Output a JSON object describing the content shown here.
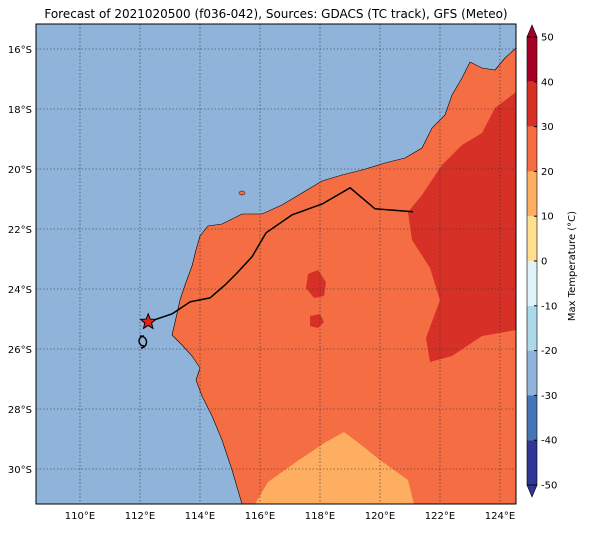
{
  "title": "Forecast of 2021020500 (f036-042), Sources: GDACS (TC track), GFS (Meteo)",
  "map": {
    "lon_labels": [
      "110°E",
      "112°E",
      "114°E",
      "116°E",
      "118°E",
      "120°E",
      "122°E",
      "124°E"
    ],
    "lat_labels": [
      "16°S",
      "18°S",
      "20°S",
      "22°S",
      "24°S",
      "26°S",
      "28°S",
      "30°S"
    ],
    "xlim": [
      108.53,
      124.53
    ],
    "ylim": [
      -31.17,
      -15.17
    ]
  },
  "track": {
    "lon": [
      112.27,
      113.07,
      113.67,
      114.33,
      114.83,
      115.23,
      115.73,
      116.2,
      117.07,
      118.07,
      119.0,
      119.83,
      121.1
    ],
    "lat": [
      -25.1,
      -24.83,
      -24.43,
      -24.3,
      -23.87,
      -23.47,
      -22.93,
      -22.13,
      -21.53,
      -21.17,
      -20.63,
      -21.33,
      -21.43
    ],
    "color": "#000000",
    "star_color": "#e8211f"
  },
  "colorbar": {
    "label": "Max Temperature (°C)",
    "ticks": [
      50,
      40,
      30,
      20,
      10,
      0,
      -10,
      -20,
      -30,
      -40,
      -50
    ],
    "colors": [
      "#a50026",
      "#d73027",
      "#f46d43",
      "#fdae61",
      "#fee090",
      "#e0f3f8",
      "#abd9e9",
      "#8fb3d9",
      "#4575b4",
      "#313695"
    ]
  }
}
